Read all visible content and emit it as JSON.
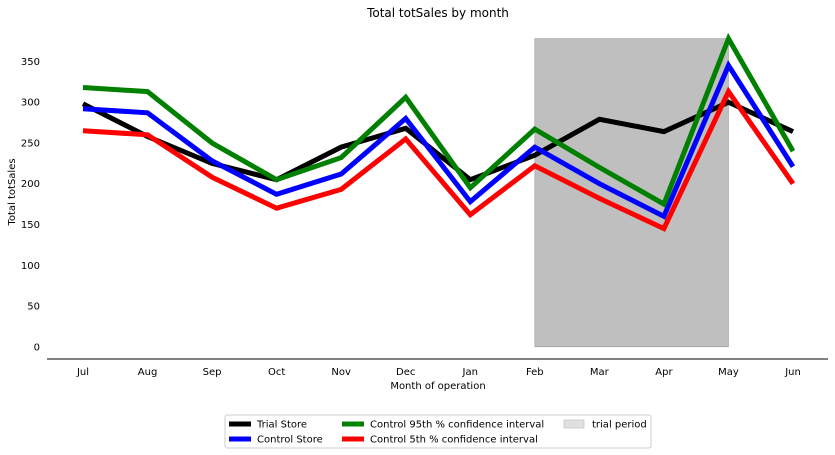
{
  "chart_data": {
    "type": "line",
    "title": "Total totSales by month",
    "xlabel": "Month of operation",
    "ylabel": "Total totSales",
    "categories": [
      "Jul",
      "Aug",
      "Sep",
      "Oct",
      "Nov",
      "Dec",
      "Jan",
      "Feb",
      "Mar",
      "Apr",
      "May",
      "Jun"
    ],
    "ylim": [
      -15,
      380
    ],
    "yticks": [
      0,
      50,
      100,
      150,
      200,
      250,
      300,
      350
    ],
    "grid": false,
    "legend_position": "bottom-center",
    "series": [
      {
        "name": "Trial Store",
        "color": "#000000",
        "values": [
          298,
          258,
          225,
          205,
          245,
          268,
          205,
          235,
          279,
          264,
          300,
          264
        ]
      },
      {
        "name": "Control Store",
        "color": "#0000ff",
        "values": [
          292,
          287,
          228,
          187,
          212,
          280,
          178,
          245,
          200,
          160,
          345,
          221
        ]
      },
      {
        "name": "Control 95th % confidence interval",
        "color": "#008000",
        "values": [
          318,
          313,
          250,
          205,
          232,
          306,
          195,
          267,
          220,
          175,
          378,
          240
        ]
      },
      {
        "name": "Control 5th % confidence interval",
        "color": "#ff0000",
        "values": [
          265,
          260,
          208,
          170,
          193,
          255,
          162,
          222,
          182,
          145,
          313,
          200
        ]
      }
    ],
    "shaded_region": {
      "label": "trial period",
      "x_start": "Feb",
      "x_end": "May",
      "y_start": 0,
      "y_end": 378,
      "color": "#bfbfbf"
    }
  }
}
